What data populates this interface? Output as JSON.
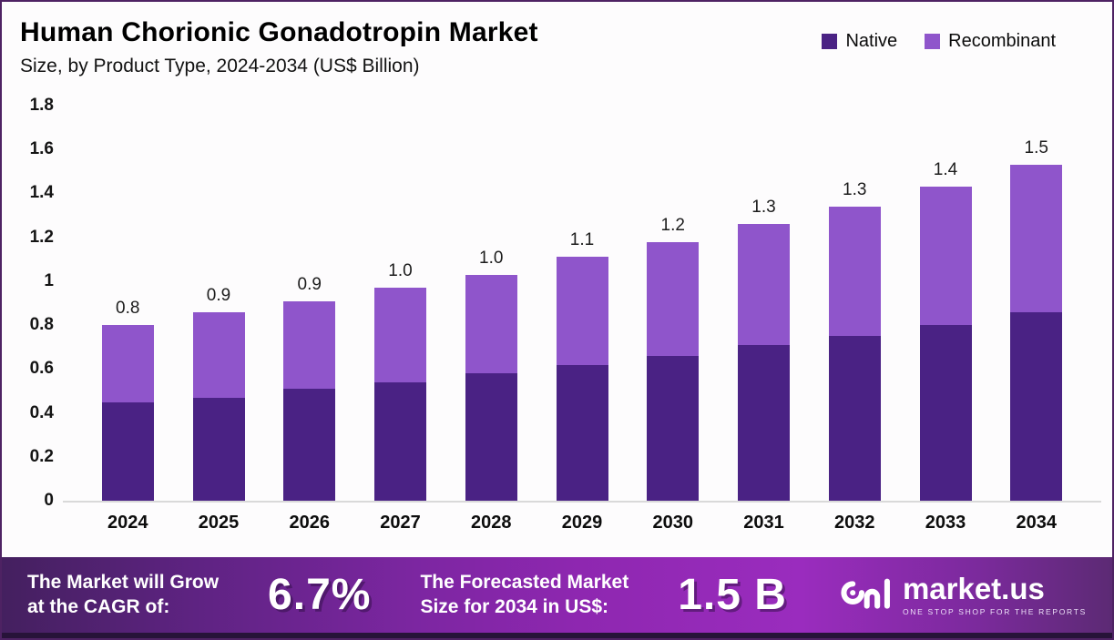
{
  "header": {
    "title": "Human Chorionic Gonadotropin Market",
    "subtitle": "Size, by Product Type, 2024-2034 (US$ Billion)"
  },
  "legend": {
    "items": [
      {
        "label": "Native",
        "color": "#4a2284"
      },
      {
        "label": "Recombinant",
        "color": "#8f55cb"
      }
    ]
  },
  "chart_data": {
    "type": "bar",
    "stacked": true,
    "title": "Human Chorionic Gonadotropin Market Size, by Product Type, 2024-2034 (US$ Billion)",
    "xlabel": "",
    "ylabel": "US$ Billion",
    "categories": [
      "2024",
      "2025",
      "2026",
      "2027",
      "2028",
      "2029",
      "2030",
      "2031",
      "2032",
      "2033",
      "2034"
    ],
    "series": [
      {
        "name": "Native",
        "color": "#4a2284",
        "values": [
          0.45,
          0.47,
          0.51,
          0.54,
          0.58,
          0.62,
          0.66,
          0.71,
          0.75,
          0.8,
          0.86
        ]
      },
      {
        "name": "Recombinant",
        "color": "#8f55cb",
        "values": [
          0.35,
          0.39,
          0.4,
          0.43,
          0.45,
          0.49,
          0.52,
          0.55,
          0.59,
          0.63,
          0.67
        ]
      }
    ],
    "total_labels": [
      "0.8",
      "0.9",
      "0.9",
      "1.0",
      "1.0",
      "1.1",
      "1.2",
      "1.3",
      "1.3",
      "1.4",
      "1.5"
    ],
    "ylim": [
      0,
      1.8
    ],
    "yticks": [
      "1.8",
      "1.6",
      "1.4",
      "1.2",
      "1",
      "0.8",
      "0.6",
      "0.4",
      "0.2",
      "0"
    ],
    "grid": false,
    "legend_position": "top-right"
  },
  "footer": {
    "cagr_label_line1": "The Market will Grow",
    "cagr_label_line2": "at the CAGR of:",
    "cagr_value": "6.7%",
    "forecast_label_line1": "The Forecasted Market",
    "forecast_label_line2": "Size for 2034 in US$:",
    "forecast_value": "1.5 B",
    "logo_name": "market.us",
    "logo_tagline": "ONE STOP SHOP FOR THE REPORTS"
  }
}
